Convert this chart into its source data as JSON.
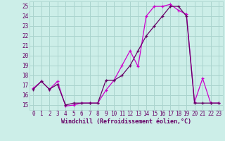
{
  "xlabel": "Windchill (Refroidissement éolien,°C)",
  "background_color": "#cceee8",
  "grid_color": "#aad4ce",
  "line_color1": "#cc00cc",
  "line_color2": "#660066",
  "xlim": [
    -0.5,
    23.5
  ],
  "ylim": [
    14.5,
    25.5
  ],
  "yticks": [
    15,
    16,
    17,
    18,
    19,
    20,
    21,
    22,
    23,
    24,
    25
  ],
  "xticks": [
    0,
    1,
    2,
    3,
    4,
    5,
    6,
    7,
    8,
    9,
    10,
    11,
    12,
    13,
    14,
    15,
    16,
    17,
    18,
    19,
    20,
    21,
    22,
    23
  ],
  "series1_x": [
    0,
    1,
    2,
    3,
    4,
    5,
    6,
    7,
    8,
    9,
    10,
    11,
    12,
    13,
    14,
    15,
    16,
    17,
    18,
    19,
    20,
    21,
    22,
    23
  ],
  "series1_y": [
    16.7,
    17.4,
    16.6,
    17.4,
    14.9,
    15.0,
    15.2,
    15.2,
    15.2,
    16.5,
    17.5,
    19.0,
    20.5,
    18.9,
    24.0,
    25.0,
    25.0,
    25.2,
    24.6,
    24.2,
    15.3,
    17.7,
    15.2,
    15.2
  ],
  "series2_x": [
    0,
    1,
    2,
    3,
    4,
    5,
    6,
    7,
    8,
    9,
    10,
    11,
    12,
    13,
    14,
    15,
    16,
    17,
    18,
    19,
    20,
    21,
    22,
    23
  ],
  "series2_y": [
    16.6,
    17.4,
    16.6,
    17.1,
    15.0,
    15.2,
    15.2,
    15.2,
    15.2,
    17.5,
    17.5,
    18.0,
    19.0,
    20.5,
    22.0,
    23.0,
    24.0,
    25.0,
    25.0,
    24.0,
    15.2,
    15.2,
    15.2,
    15.2
  ],
  "tick_fontsize": 5.5,
  "xlabel_fontsize": 6.0
}
